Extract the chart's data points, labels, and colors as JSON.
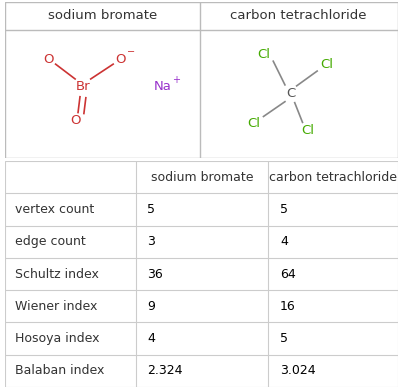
{
  "col_headers": [
    "",
    "sodium bromate",
    "carbon tetrachloride"
  ],
  "rows": [
    [
      "vertex count",
      "5",
      "5"
    ],
    [
      "edge count",
      "3",
      "4"
    ],
    [
      "Schultz index",
      "36",
      "64"
    ],
    [
      "Wiener index",
      "9",
      "16"
    ],
    [
      "Hosoya index",
      "4",
      "5"
    ],
    [
      "Balaban index",
      "2.324",
      "3.024"
    ]
  ],
  "mol1_title": "sodium bromate",
  "mol2_title": "carbon tetrachloride",
  "bg_color": "#ffffff",
  "table_line_color": "#cccccc",
  "header_text_color": "#333333",
  "row_label_color": "#333333",
  "data_color": "#000000",
  "br_color": "#cc3333",
  "o_color": "#cc3333",
  "na_color": "#9933cc",
  "c_color": "#555555",
  "cl_color": "#44aa00",
  "bond_color": "#888888"
}
